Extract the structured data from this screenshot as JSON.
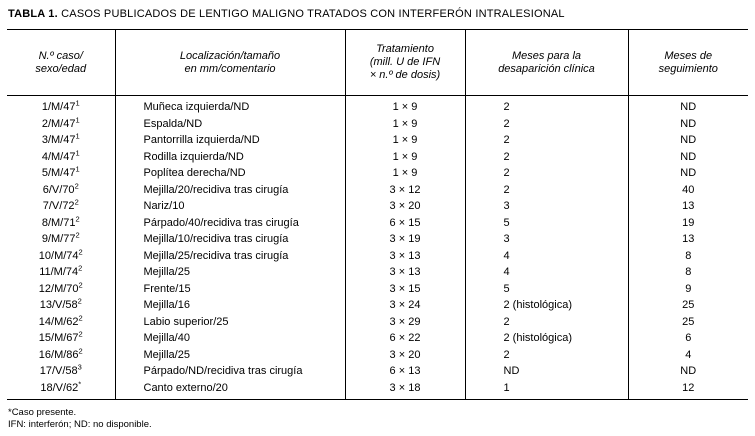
{
  "page": {
    "title_label": "TABLA 1.",
    "title_text": " CASOS PUBLICADOS DE LENTIGO MALIGNO TRATADOS CON INTERFERÓN INTRALESIONAL"
  },
  "table": {
    "headers": {
      "caso": "N.º caso/\nsexo/edad",
      "localizacion": "Localización/tamaño\nen mm/comentario",
      "tratamiento": "Tratamiento\n(mill. U de IFN\n× n.º de dosis)",
      "desaparicion": "Meses para la\ndesaparición clínica",
      "seguimiento": "Meses de\nseguimiento"
    },
    "rows": [
      {
        "caso": "1/M/47",
        "sup": "1",
        "loc": "Muñeca izquierda/ND",
        "trat": "1 × 9",
        "desap": "2",
        "seg": "ND"
      },
      {
        "caso": "2/M/47",
        "sup": "1",
        "loc": "Espalda/ND",
        "trat": "1 × 9",
        "desap": "2",
        "seg": "ND"
      },
      {
        "caso": "3/M/47",
        "sup": "1",
        "loc": "Pantorrilla izquierda/ND",
        "trat": "1 × 9",
        "desap": "2",
        "seg": "ND"
      },
      {
        "caso": "4/M/47",
        "sup": "1",
        "loc": "Rodilla izquierda/ND",
        "trat": "1 × 9",
        "desap": "2",
        "seg": "ND"
      },
      {
        "caso": "5/M/47",
        "sup": "1",
        "loc": "Poplítea derecha/ND",
        "trat": "1 × 9",
        "desap": "2",
        "seg": "ND"
      },
      {
        "caso": "6/V/70",
        "sup": "2",
        "loc": "Mejilla/20/recidiva tras cirugía",
        "trat": "3 × 12",
        "desap": "2",
        "seg": "40"
      },
      {
        "caso": "7/V/72",
        "sup": "2",
        "loc": "Nariz/10",
        "trat": "3 × 20",
        "desap": "3",
        "seg": "13"
      },
      {
        "caso": "8/M/71",
        "sup": "2",
        "loc": "Párpado/40/recidiva tras cirugía",
        "trat": "6 × 15",
        "desap": "5",
        "seg": "19"
      },
      {
        "caso": "9/M/77",
        "sup": "2",
        "loc": "Mejilla/10/recidiva tras cirugía",
        "trat": "3 × 19",
        "desap": "3",
        "seg": "13"
      },
      {
        "caso": "10/M/74",
        "sup": "2",
        "loc": "Mejilla/25/recidiva tras cirugía",
        "trat": "3 × 13",
        "desap": "4",
        "seg": "8"
      },
      {
        "caso": "11/M/74",
        "sup": "2",
        "loc": "Mejilla/25",
        "trat": "3 × 13",
        "desap": "4",
        "seg": "8"
      },
      {
        "caso": "12/M/70",
        "sup": "2",
        "loc": "Frente/15",
        "trat": "3 × 15",
        "desap": "5",
        "seg": "9"
      },
      {
        "caso": "13/V/58",
        "sup": "2",
        "loc": "Mejilla/16",
        "trat": "3 × 24",
        "desap": "2 (histológica)",
        "seg": "25"
      },
      {
        "caso": "14/M/62",
        "sup": "2",
        "loc": "Labio superior/25",
        "trat": "3 × 29",
        "desap": "2",
        "seg": "25"
      },
      {
        "caso": "15/M/67",
        "sup": "2",
        "loc": "Mejilla/40",
        "trat": "6 × 22",
        "desap": "2 (histológica)",
        "seg": "6"
      },
      {
        "caso": "16/M/86",
        "sup": "2",
        "loc": "Mejilla/25",
        "trat": "3 × 20",
        "desap": "2",
        "seg": "4"
      },
      {
        "caso": "17/V/58",
        "sup": "3",
        "loc": "Párpado/ND/recidiva tras cirugía",
        "trat": "6 × 13",
        "desap": "ND",
        "seg": "ND"
      },
      {
        "caso": "18/V/62",
        "sup": "*",
        "loc": "Canto externo/20",
        "trat": "3 × 18",
        "desap": "1",
        "seg": "12"
      }
    ]
  },
  "footnotes": {
    "line1": "*Caso presente.",
    "line2": "IFN: interferón; ND: no disponible."
  }
}
